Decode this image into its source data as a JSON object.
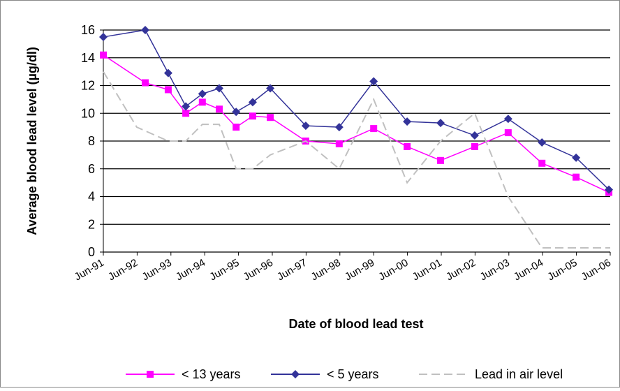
{
  "chart_data": {
    "type": "line",
    "xlabel": "Date of blood lead test",
    "ylabel": "Average blood lead level (µg/dl)",
    "xlim": [
      1991.5,
      2006.5
    ],
    "xticks": [
      {
        "value": 1991.5,
        "label": "Jun-91"
      },
      {
        "value": 1992.5,
        "label": "Jun-92"
      },
      {
        "value": 1993.5,
        "label": "Jun-93"
      },
      {
        "value": 1994.5,
        "label": "Jun-94"
      },
      {
        "value": 1995.5,
        "label": "Jun-95"
      },
      {
        "value": 1996.5,
        "label": "Jun-96"
      },
      {
        "value": 1997.5,
        "label": "Jun-97"
      },
      {
        "value": 1998.5,
        "label": "Jun-98"
      },
      {
        "value": 1999.5,
        "label": "Jun-99"
      },
      {
        "value": 2000.5,
        "label": "Jun-00"
      },
      {
        "value": 2001.5,
        "label": "Jun-01"
      },
      {
        "value": 2002.5,
        "label": "Jun-02"
      },
      {
        "value": 2003.5,
        "label": "Jun-03"
      },
      {
        "value": 2004.5,
        "label": "Jun-04"
      },
      {
        "value": 2005.5,
        "label": "Jun-05"
      },
      {
        "value": 2006.5,
        "label": "Jun-06"
      }
    ],
    "ylim": [
      0,
      16
    ],
    "yticks": [
      0,
      2,
      4,
      6,
      8,
      10,
      12,
      14,
      16
    ],
    "grid": true,
    "legend": "bottom",
    "series": [
      {
        "name": "< 13 years",
        "color": "#ff00ff",
        "marker": "square",
        "x": [
          1991.5,
          1992.74,
          1993.42,
          1993.94,
          1994.43,
          1994.93,
          1995.43,
          1995.92,
          1996.44,
          1997.49,
          1998.48,
          1999.5,
          2000.49,
          2001.48,
          2002.49,
          2003.48,
          2004.48,
          2005.49,
          2006.46
        ],
        "values": [
          14.2,
          12.2,
          11.7,
          10.0,
          10.8,
          10.3,
          9.0,
          9.8,
          9.7,
          8.0,
          7.8,
          8.9,
          7.6,
          6.6,
          7.6,
          8.6,
          6.4,
          5.4,
          4.3
        ]
      },
      {
        "name": "< 5 years",
        "color": "#333399",
        "marker": "diamond",
        "x": [
          1991.5,
          1992.74,
          1993.42,
          1993.94,
          1994.43,
          1994.93,
          1995.43,
          1995.92,
          1996.44,
          1997.49,
          1998.48,
          1999.5,
          2000.49,
          2001.48,
          2002.49,
          2003.48,
          2004.48,
          2005.49,
          2006.46
        ],
        "values": [
          15.5,
          16.0,
          12.9,
          10.5,
          11.4,
          11.8,
          10.1,
          10.8,
          11.8,
          9.1,
          9.0,
          12.3,
          9.4,
          9.3,
          8.4,
          9.6,
          7.9,
          6.8,
          4.5
        ]
      },
      {
        "name": "Lead in air level",
        "color": "#c0c0c0",
        "dashed": true,
        "x": [
          1991.5,
          1992.49,
          1993.42,
          1993.94,
          1994.43,
          1994.93,
          1995.43,
          1995.92,
          1996.44,
          1997.49,
          1998.48,
          1999.5,
          2000.49,
          2001.48,
          2002.49,
          2003.48,
          2004.48,
          2005.49,
          2006.5
        ],
        "values": [
          13,
          9,
          8,
          8,
          9.2,
          9.2,
          6,
          6,
          7,
          8,
          6,
          11,
          5,
          8,
          10,
          4,
          0.3,
          0.3,
          0.3
        ]
      }
    ]
  }
}
